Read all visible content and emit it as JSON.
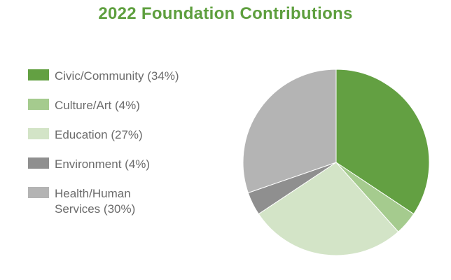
{
  "chart_data": {
    "type": "pie",
    "title": "2022 Foundation Contributions",
    "legend_position": "left",
    "slices": [
      {
        "label": "Civic/Community (34%)",
        "value": 34,
        "color": "#63a042"
      },
      {
        "label": "Culture/Art (4%)",
        "value": 4,
        "color": "#a5cb8e"
      },
      {
        "label": "Education (27%)",
        "value": 27,
        "color": "#d3e4c7"
      },
      {
        "label": "Environment (4%)",
        "value": 4,
        "color": "#8f8f8f"
      },
      {
        "label": "Health/Human\nServices (30%)",
        "value": 30,
        "color": "#b4b4b4"
      }
    ]
  }
}
